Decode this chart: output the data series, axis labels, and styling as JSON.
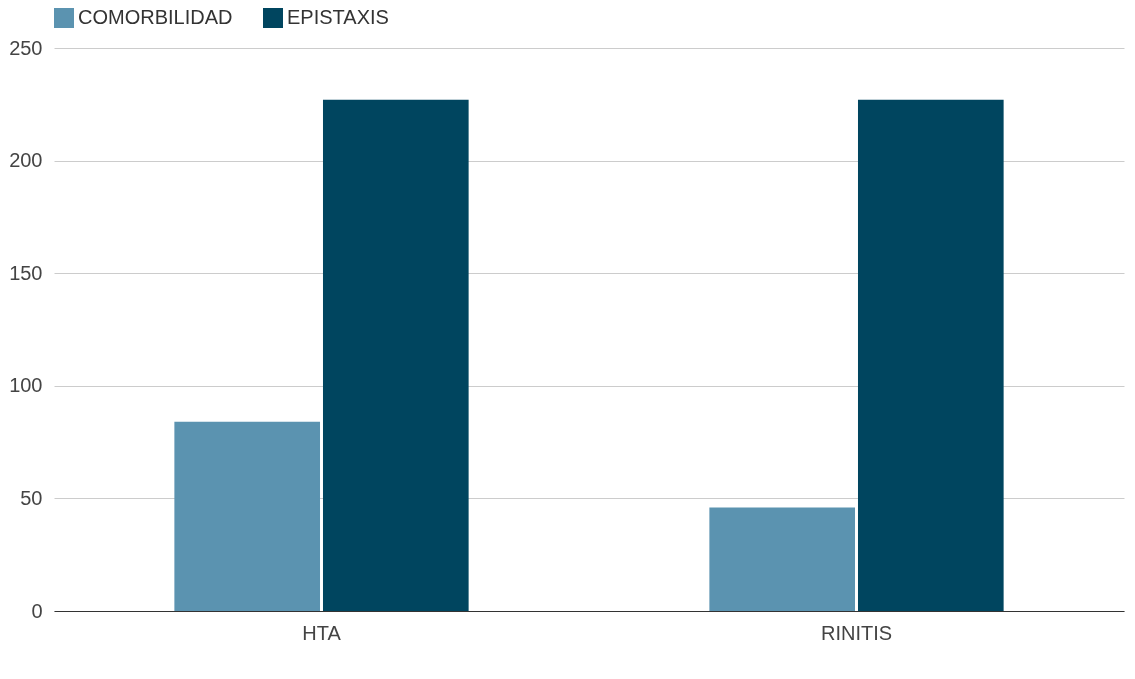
{
  "chart_data": {
    "type": "bar",
    "categories": [
      "HTA",
      "RINITIS"
    ],
    "series": [
      {
        "name": "COMORBILIDAD",
        "color": "#5b93b0",
        "values": [
          84,
          46
        ]
      },
      {
        "name": "EPISTAXIS",
        "color": "#00455f",
        "values": [
          227,
          227
        ]
      }
    ],
    "ylim": [
      0,
      250
    ],
    "yticks": [
      0,
      50,
      100,
      150,
      200,
      250
    ],
    "grid": "y",
    "legend": "top"
  }
}
